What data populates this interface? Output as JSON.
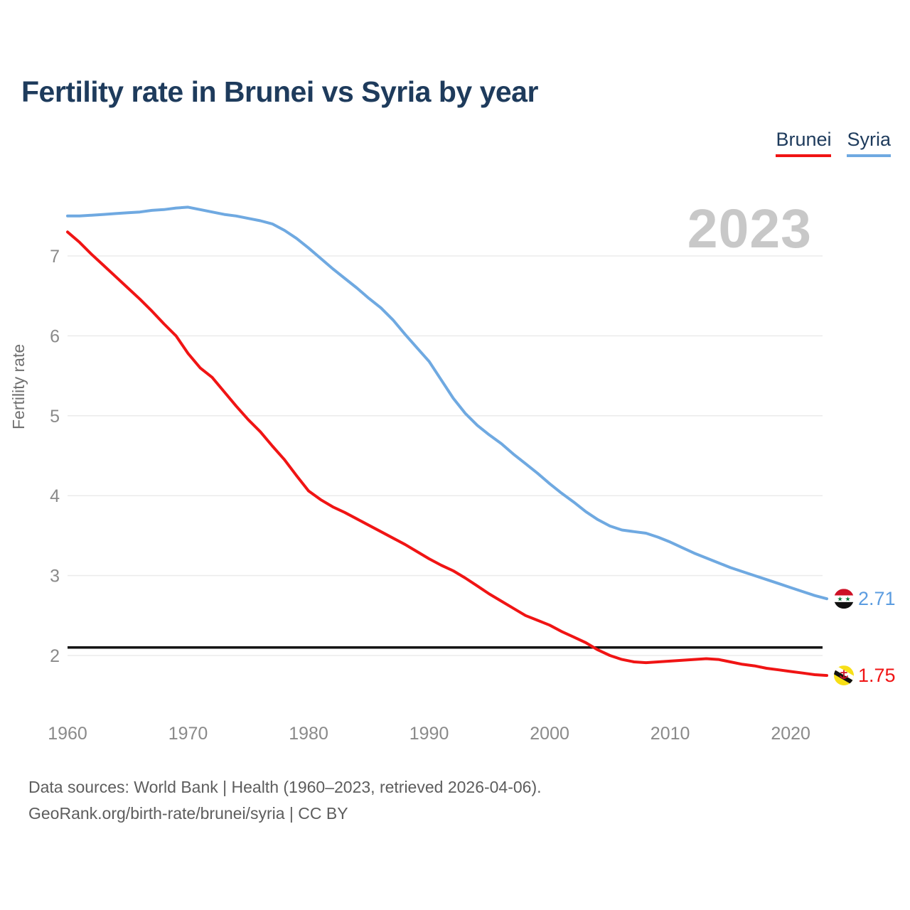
{
  "title": "Fertility rate in Brunei vs Syria by year",
  "watermark_year": "2023",
  "legend": {
    "items": [
      {
        "label": "Brunei",
        "color": "#f01414"
      },
      {
        "label": "Syria",
        "color": "#6fa9e1"
      }
    ]
  },
  "footer": {
    "line1": "Data sources: World Bank | Health (1960–2023, retrieved 2026-04-06).",
    "line2": "GeoRank.org/birth-rate/brunei/syria | CC BY"
  },
  "colors": {
    "title": "#1e3b5c",
    "brunei_line": "#f01414",
    "syria_line": "#6fa9e1",
    "brunei_value_text": "#f01414",
    "syria_value_text": "#5b9ce0",
    "grid": "#ebebeb",
    "axis_text": "#8a8a8a",
    "y_axis_label": "#707070",
    "footer_text": "#5d5d5d",
    "watermark": "#c8c8c8",
    "reference_line": "#141414",
    "syria_flag_red": "#ce1126",
    "syria_flag_green": "#0a7a3c",
    "brunei_flag_yellow": "#f7df17",
    "brunei_flag_red": "#cf1126"
  },
  "chart_data": {
    "type": "line",
    "title": "Fertility rate in Brunei vs Syria by year",
    "xlabel": "",
    "ylabel": "Fertility rate",
    "x_ticks": [
      1960,
      1970,
      1980,
      1990,
      2000,
      2010,
      2020
    ],
    "y_ticks": [
      2,
      3,
      4,
      5,
      6,
      7
    ],
    "xlim": [
      1960,
      2023
    ],
    "ylim": [
      1.6,
      7.8
    ],
    "grid": "horizontal",
    "legend_position": "top-right",
    "reference_line": {
      "value": 2.1
    },
    "series": [
      {
        "name": "Syria",
        "color": "#6fa9e1",
        "end_label": "2.71",
        "end_value": 2.71,
        "flag": "syria",
        "points": [
          [
            1960,
            7.5
          ],
          [
            1961,
            7.5
          ],
          [
            1962,
            7.51
          ],
          [
            1963,
            7.52
          ],
          [
            1964,
            7.53
          ],
          [
            1965,
            7.54
          ],
          [
            1966,
            7.55
          ],
          [
            1967,
            7.57
          ],
          [
            1968,
            7.58
          ],
          [
            1969,
            7.6
          ],
          [
            1970,
            7.61
          ],
          [
            1971,
            7.58
          ],
          [
            1972,
            7.55
          ],
          [
            1973,
            7.52
          ],
          [
            1974,
            7.5
          ],
          [
            1975,
            7.47
          ],
          [
            1976,
            7.44
          ],
          [
            1977,
            7.4
          ],
          [
            1978,
            7.32
          ],
          [
            1979,
            7.22
          ],
          [
            1980,
            7.1
          ],
          [
            1981,
            6.97
          ],
          [
            1982,
            6.84
          ],
          [
            1983,
            6.72
          ],
          [
            1984,
            6.6
          ],
          [
            1985,
            6.47
          ],
          [
            1986,
            6.35
          ],
          [
            1987,
            6.2
          ],
          [
            1988,
            6.02
          ],
          [
            1989,
            5.85
          ],
          [
            1990,
            5.68
          ],
          [
            1991,
            5.45
          ],
          [
            1992,
            5.22
          ],
          [
            1993,
            5.03
          ],
          [
            1994,
            4.88
          ],
          [
            1995,
            4.76
          ],
          [
            1996,
            4.65
          ],
          [
            1997,
            4.52
          ],
          [
            1998,
            4.4
          ],
          [
            1999,
            4.28
          ],
          [
            2000,
            4.15
          ],
          [
            2001,
            4.03
          ],
          [
            2002,
            3.92
          ],
          [
            2003,
            3.8
          ],
          [
            2004,
            3.7
          ],
          [
            2005,
            3.62
          ],
          [
            2006,
            3.57
          ],
          [
            2007,
            3.55
          ],
          [
            2008,
            3.53
          ],
          [
            2009,
            3.48
          ],
          [
            2010,
            3.42
          ],
          [
            2011,
            3.35
          ],
          [
            2012,
            3.28
          ],
          [
            2013,
            3.22
          ],
          [
            2014,
            3.16
          ],
          [
            2015,
            3.1
          ],
          [
            2016,
            3.05
          ],
          [
            2017,
            3.0
          ],
          [
            2018,
            2.95
          ],
          [
            2019,
            2.9
          ],
          [
            2020,
            2.85
          ],
          [
            2021,
            2.8
          ],
          [
            2022,
            2.75
          ],
          [
            2023,
            2.71
          ]
        ]
      },
      {
        "name": "Brunei",
        "color": "#f01414",
        "end_label": "1.75",
        "end_value": 1.75,
        "flag": "brunei",
        "points": [
          [
            1960,
            7.3
          ],
          [
            1961,
            7.17
          ],
          [
            1962,
            7.02
          ],
          [
            1963,
            6.88
          ],
          [
            1964,
            6.74
          ],
          [
            1965,
            6.6
          ],
          [
            1966,
            6.46
          ],
          [
            1967,
            6.31
          ],
          [
            1968,
            6.15
          ],
          [
            1969,
            6.0
          ],
          [
            1970,
            5.78
          ],
          [
            1971,
            5.6
          ],
          [
            1972,
            5.48
          ],
          [
            1973,
            5.3
          ],
          [
            1974,
            5.12
          ],
          [
            1975,
            4.95
          ],
          [
            1976,
            4.8
          ],
          [
            1977,
            4.62
          ],
          [
            1978,
            4.45
          ],
          [
            1979,
            4.25
          ],
          [
            1980,
            4.06
          ],
          [
            1981,
            3.95
          ],
          [
            1982,
            3.86
          ],
          [
            1983,
            3.79
          ],
          [
            1984,
            3.71
          ],
          [
            1985,
            3.63
          ],
          [
            1986,
            3.55
          ],
          [
            1987,
            3.47
          ],
          [
            1988,
            3.39
          ],
          [
            1989,
            3.3
          ],
          [
            1990,
            3.21
          ],
          [
            1991,
            3.13
          ],
          [
            1992,
            3.06
          ],
          [
            1993,
            2.97
          ],
          [
            1994,
            2.87
          ],
          [
            1995,
            2.77
          ],
          [
            1996,
            2.68
          ],
          [
            1997,
            2.59
          ],
          [
            1998,
            2.5
          ],
          [
            1999,
            2.44
          ],
          [
            2000,
            2.38
          ],
          [
            2001,
            2.3
          ],
          [
            2002,
            2.23
          ],
          [
            2003,
            2.16
          ],
          [
            2004,
            2.07
          ],
          [
            2005,
            2.0
          ],
          [
            2006,
            1.95
          ],
          [
            2007,
            1.92
          ],
          [
            2008,
            1.91
          ],
          [
            2009,
            1.92
          ],
          [
            2010,
            1.93
          ],
          [
            2011,
            1.94
          ],
          [
            2012,
            1.95
          ],
          [
            2013,
            1.96
          ],
          [
            2014,
            1.95
          ],
          [
            2015,
            1.92
          ],
          [
            2016,
            1.89
          ],
          [
            2017,
            1.87
          ],
          [
            2018,
            1.84
          ],
          [
            2019,
            1.82
          ],
          [
            2020,
            1.8
          ],
          [
            2021,
            1.78
          ],
          [
            2022,
            1.76
          ],
          [
            2023,
            1.75
          ]
        ]
      }
    ]
  }
}
